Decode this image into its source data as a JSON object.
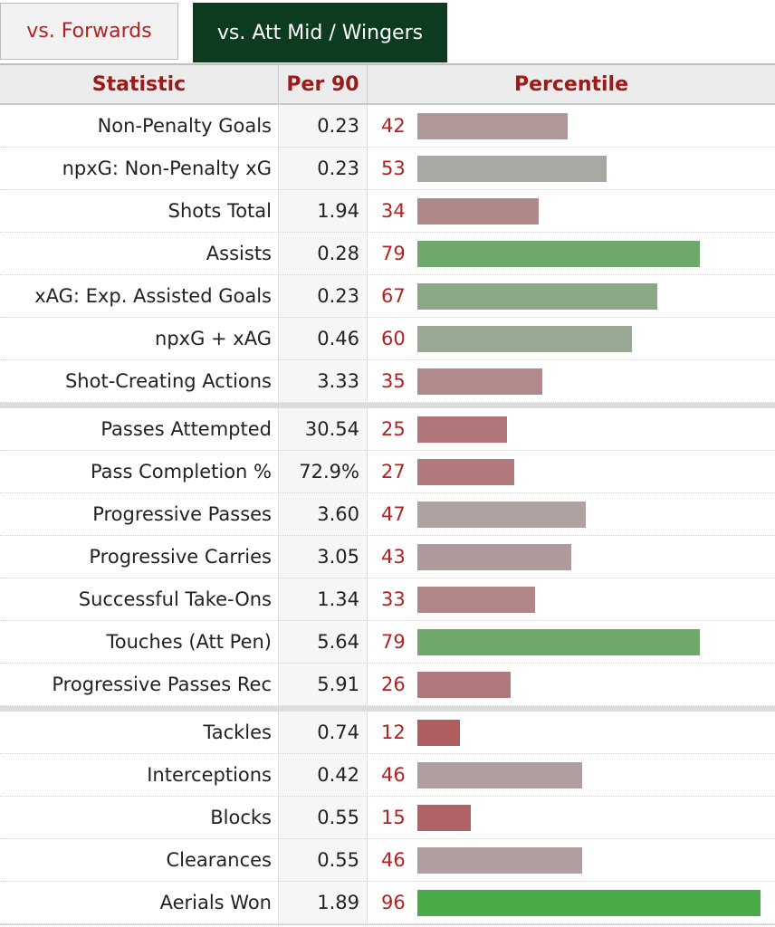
{
  "tabs": [
    {
      "label": "vs. Forwards",
      "active": false
    },
    {
      "label": "vs. Att Mid / Wingers",
      "active": true
    }
  ],
  "table_headers": {
    "statistic": "Statistic",
    "per90": "Per 90",
    "percentile": "Percentile"
  },
  "colors": {
    "accent_red": "#b22222",
    "tab_active_bg": "#0d3b20",
    "bar_scale_low": "#b0464a",
    "bar_scale_mid": "#b0a7a7",
    "bar_scale_high": "#3fab3f"
  },
  "chart_data": {
    "type": "bar",
    "orientation": "horizontal",
    "xlim": [
      0,
      100
    ],
    "categories": [
      "Non-Penalty Goals",
      "npxG: Non-Penalty xG",
      "Shots Total",
      "Assists",
      "xAG: Exp. Assisted Goals",
      "npxG + xAG",
      "Shot-Creating Actions",
      "Passes Attempted",
      "Pass Completion %",
      "Progressive Passes",
      "Progressive Carries",
      "Successful Take-Ons",
      "Touches (Att Pen)",
      "Progressive Passes Rec",
      "Tackles",
      "Interceptions",
      "Blocks",
      "Clearances",
      "Aerials Won"
    ],
    "per90": [
      "0.23",
      "0.23",
      "1.94",
      "0.28",
      "0.23",
      "0.46",
      "3.33",
      "30.54",
      "72.9%",
      "3.60",
      "3.05",
      "1.34",
      "5.64",
      "5.91",
      "0.74",
      "0.42",
      "0.55",
      "0.55",
      "1.89"
    ],
    "values": [
      42,
      53,
      34,
      79,
      67,
      60,
      35,
      25,
      27,
      47,
      43,
      33,
      79,
      26,
      12,
      46,
      15,
      46,
      96
    ],
    "group_sizes": [
      7,
      7,
      5
    ]
  }
}
